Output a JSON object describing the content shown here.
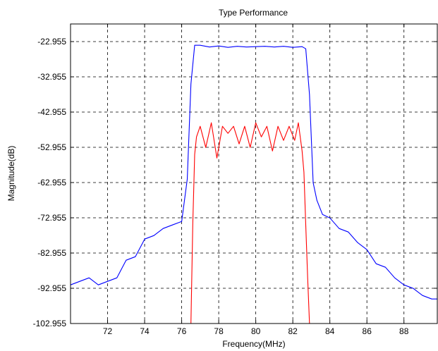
{
  "chart_data": {
    "type": "line",
    "title": "Type Performance",
    "xlabel": "Frequency(MHz)",
    "ylabel": "Magnitude(dB)",
    "xlim": [
      70,
      89.8
    ],
    "ylim": [
      -102.955,
      -17.955
    ],
    "xticks": [
      72,
      74,
      76,
      78,
      80,
      82,
      84,
      86,
      88
    ],
    "yticks": [
      -102.955,
      -92.955,
      -82.955,
      -72.955,
      -62.955,
      -52.955,
      -42.955,
      -32.955,
      -22.955
    ],
    "yticklabels": [
      "-102.955",
      "-92.955",
      "-82.955",
      "-72.955",
      "-62.955",
      "-52.955",
      "-42.955",
      "-32.955",
      "-22.955"
    ],
    "grid": true,
    "grid_style": "dashed",
    "legend": "none",
    "series": [
      {
        "color": "#0000ff",
        "x": [
          70.0,
          70.5,
          71.0,
          71.5,
          72.0,
          72.5,
          73.0,
          73.5,
          74.0,
          74.5,
          75.0,
          75.5,
          76.0,
          76.3,
          76.5,
          76.7,
          77.0,
          77.5,
          78.0,
          78.5,
          79.0,
          79.5,
          80.0,
          80.5,
          81.0,
          81.5,
          82.0,
          82.5,
          82.7,
          82.9,
          83.1,
          83.3,
          83.6,
          84.0,
          84.5,
          85.0,
          85.5,
          86.0,
          86.5,
          87.0,
          87.5,
          88.0,
          88.5,
          89.0,
          89.5,
          89.8
        ],
        "y": [
          -92,
          -91,
          -90,
          -92,
          -91,
          -90,
          -85,
          -84,
          -79,
          -78,
          -76,
          -75,
          -74,
          -62,
          -35,
          -24,
          -24,
          -24.5,
          -24.2,
          -24.6,
          -24.3,
          -24.5,
          -24.4,
          -24.3,
          -24.5,
          -24.3,
          -24.6,
          -24.4,
          -25,
          -38,
          -63,
          -68,
          -72,
          -73,
          -76,
          -77,
          -80,
          -82,
          -86,
          -87,
          -90,
          -92,
          -93,
          -95,
          -96,
          -96
        ]
      },
      {
        "color": "#ff0000",
        "x": [
          76.5,
          76.6,
          76.7,
          76.8,
          77.0,
          77.3,
          77.6,
          77.9,
          78.2,
          78.5,
          78.8,
          79.1,
          79.4,
          79.7,
          80.0,
          80.3,
          80.6,
          80.9,
          81.2,
          81.5,
          81.8,
          82.1,
          82.3,
          82.5,
          82.6,
          82.7,
          82.8,
          82.9
        ],
        "y": [
          -102.955,
          -75,
          -55,
          -50,
          -47,
          -53,
          -46,
          -56,
          -47,
          -49,
          -47,
          -52,
          -47,
          -53,
          -46,
          -50,
          -47,
          -54,
          -47,
          -51,
          -47,
          -51,
          -46,
          -54,
          -60,
          -75,
          -90,
          -102.955
        ]
      }
    ]
  }
}
